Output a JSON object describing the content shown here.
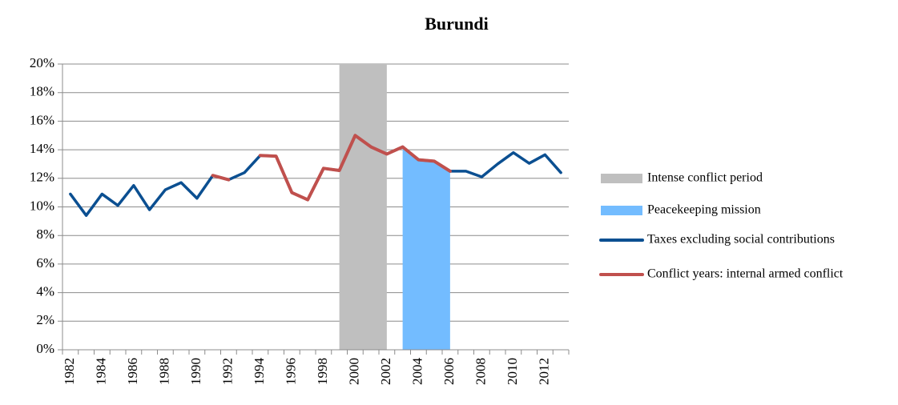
{
  "chart_data": {
    "type": "line",
    "title": "Burundi",
    "categories": [
      "1982",
      null,
      "1984",
      null,
      "1986",
      null,
      "1988",
      null,
      "1990",
      null,
      "1992",
      null,
      "1994",
      null,
      "1996",
      null,
      "1998",
      null,
      "2000",
      null,
      "2002",
      null,
      "2004",
      null,
      "2006",
      null,
      "2008",
      null,
      "2010",
      null,
      "2012",
      null
    ],
    "series": [
      {
        "name": "Intense conflict period",
        "type": "area",
        "color": "#bfbfbf",
        "values": [
          null,
          null,
          null,
          null,
          null,
          null,
          null,
          null,
          null,
          null,
          null,
          null,
          null,
          null,
          null,
          null,
          null,
          20,
          20,
          20,
          20,
          null,
          null,
          null,
          null,
          null,
          null,
          null,
          null,
          null,
          null,
          null
        ]
      },
      {
        "name": "Peacekeeping mission",
        "type": "area",
        "color": "#73bcff",
        "values": [
          null,
          null,
          null,
          null,
          null,
          null,
          null,
          null,
          null,
          null,
          null,
          null,
          null,
          null,
          null,
          null,
          null,
          null,
          null,
          null,
          null,
          14.2,
          13.3,
          13.2,
          12.5,
          null,
          null,
          null,
          null,
          null,
          null,
          null
        ]
      },
      {
        "name": "Taxes excluding social contributions",
        "type": "line",
        "color": "#0b4f91",
        "values": [
          10.9,
          9.4,
          10.9,
          10.1,
          11.5,
          9.8,
          11.2,
          11.7,
          10.6,
          12.2,
          11.9,
          12.4,
          13.6,
          13.55,
          11.0,
          10.5,
          12.7,
          12.55,
          15.0,
          14.2,
          13.7,
          14.2,
          13.3,
          13.2,
          12.5,
          12.5,
          12.1,
          13.0,
          13.8,
          13.05,
          13.65,
          12.4
        ]
      },
      {
        "name": "Conflict years: internal armed conflict",
        "type": "line",
        "color": "#c0504d",
        "values": [
          null,
          null,
          null,
          null,
          null,
          null,
          null,
          null,
          null,
          12.2,
          11.9,
          null,
          13.6,
          13.55,
          11.0,
          10.5,
          12.7,
          12.55,
          15.0,
          14.2,
          13.7,
          14.2,
          13.3,
          13.2,
          12.5,
          null,
          null,
          null,
          null,
          null,
          null,
          null
        ]
      }
    ],
    "ylim": [
      0,
      20
    ],
    "yticks": [
      {
        "value": 0,
        "label": "0%"
      },
      {
        "value": 2,
        "label": "2%"
      },
      {
        "value": 4,
        "label": "4%"
      },
      {
        "value": 6,
        "label": "6%"
      },
      {
        "value": 8,
        "label": "8%"
      },
      {
        "value": 10,
        "label": "10%"
      },
      {
        "value": 12,
        "label": "12%"
      },
      {
        "value": 14,
        "label": "14%"
      },
      {
        "value": 16,
        "label": "16%"
      },
      {
        "value": 18,
        "label": "18%"
      },
      {
        "value": 20,
        "label": "20%"
      }
    ],
    "grid": true,
    "legend": "right"
  }
}
